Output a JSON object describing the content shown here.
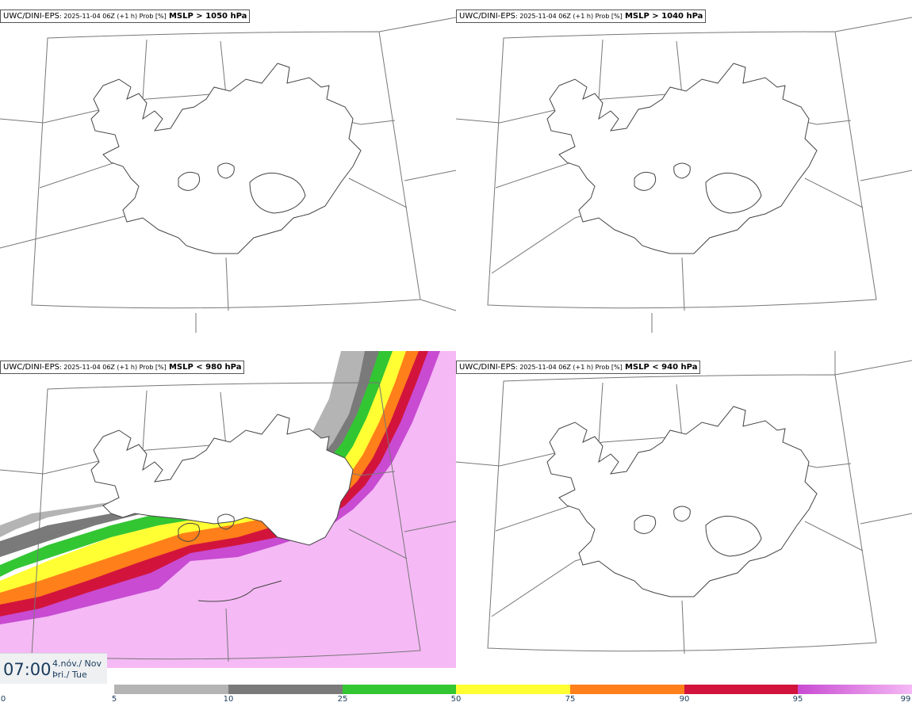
{
  "panels": [
    {
      "model": "UWC/DINI-EPS",
      "run": ": 2025-11-04 06Z (+1 h) Prob [%]",
      "param": "MSLP > 1050 hPa"
    },
    {
      "model": "UWC/DINI-EPS",
      "run": ": 2025-11-04 06Z (+1 h) Prob [%]",
      "param": "MSLP > 1040 hPa"
    },
    {
      "model": "UWC/DINI-EPS",
      "run": ": 2025-11-04 06Z (+1 h) Prob [%]",
      "param": "MSLP < 980 hPa"
    },
    {
      "model": "UWC/DINI-EPS",
      "run": ": 2025-11-04 06Z (+1 h) Prob [%]",
      "param": "MSLP < 940 hPa"
    }
  ],
  "time": {
    "clock": "07:00",
    "date_line1": "4.nóv./ Nov",
    "date_line2": "Þri./ Tue"
  },
  "legend": {
    "ticks": [
      "0",
      "5",
      "10",
      "25",
      "50",
      "75",
      "90",
      "95",
      "99"
    ],
    "colors": [
      "#ffffff",
      "#b4b4b4",
      "#7a7a7a",
      "#33c633",
      "#ffff33",
      "#ff7f1a",
      "#d2143c",
      "#c84bd2",
      "#f5b9f5"
    ]
  }
}
